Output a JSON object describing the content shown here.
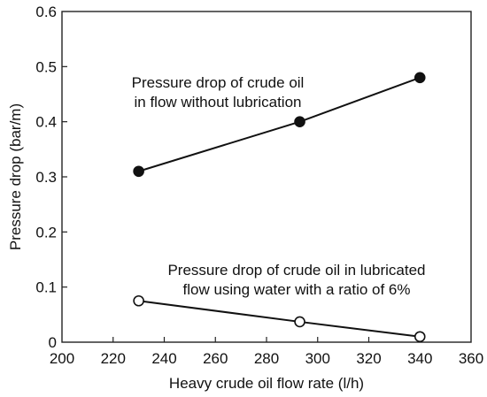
{
  "chart_data": {
    "type": "line",
    "xlabel": "Heavy crude oil flow rate (l/h)",
    "ylabel": "Pressure drop (bar/m)",
    "xlim": [
      200,
      360
    ],
    "ylim": [
      0,
      0.6
    ],
    "xticks": [
      "200",
      "220",
      "240",
      "260",
      "280",
      "300",
      "320",
      "340",
      "360"
    ],
    "yticks": [
      "0",
      "0.1",
      "0.2",
      "0.3",
      "0.4",
      "0.5",
      "0.6"
    ],
    "grid": false,
    "series": [
      {
        "name": "",
        "marker": "filled-circle",
        "x": [
          230,
          293,
          340
        ],
        "y": [
          0.31,
          0.4,
          0.48
        ]
      },
      {
        "name": "",
        "marker": "open-circle",
        "x": [
          230,
          293,
          340
        ],
        "y": [
          0.075,
          0.037,
          0.01
        ]
      }
    ],
    "annotations": [
      {
        "series_index": 0,
        "lines": [
          "Pressure drop of crude oil",
          "in flow without lubrication"
        ]
      },
      {
        "series_index": 1,
        "lines": [
          "Pressure drop of crude oil in lubricated",
          "flow using water with a ratio of 6%"
        ]
      }
    ]
  }
}
